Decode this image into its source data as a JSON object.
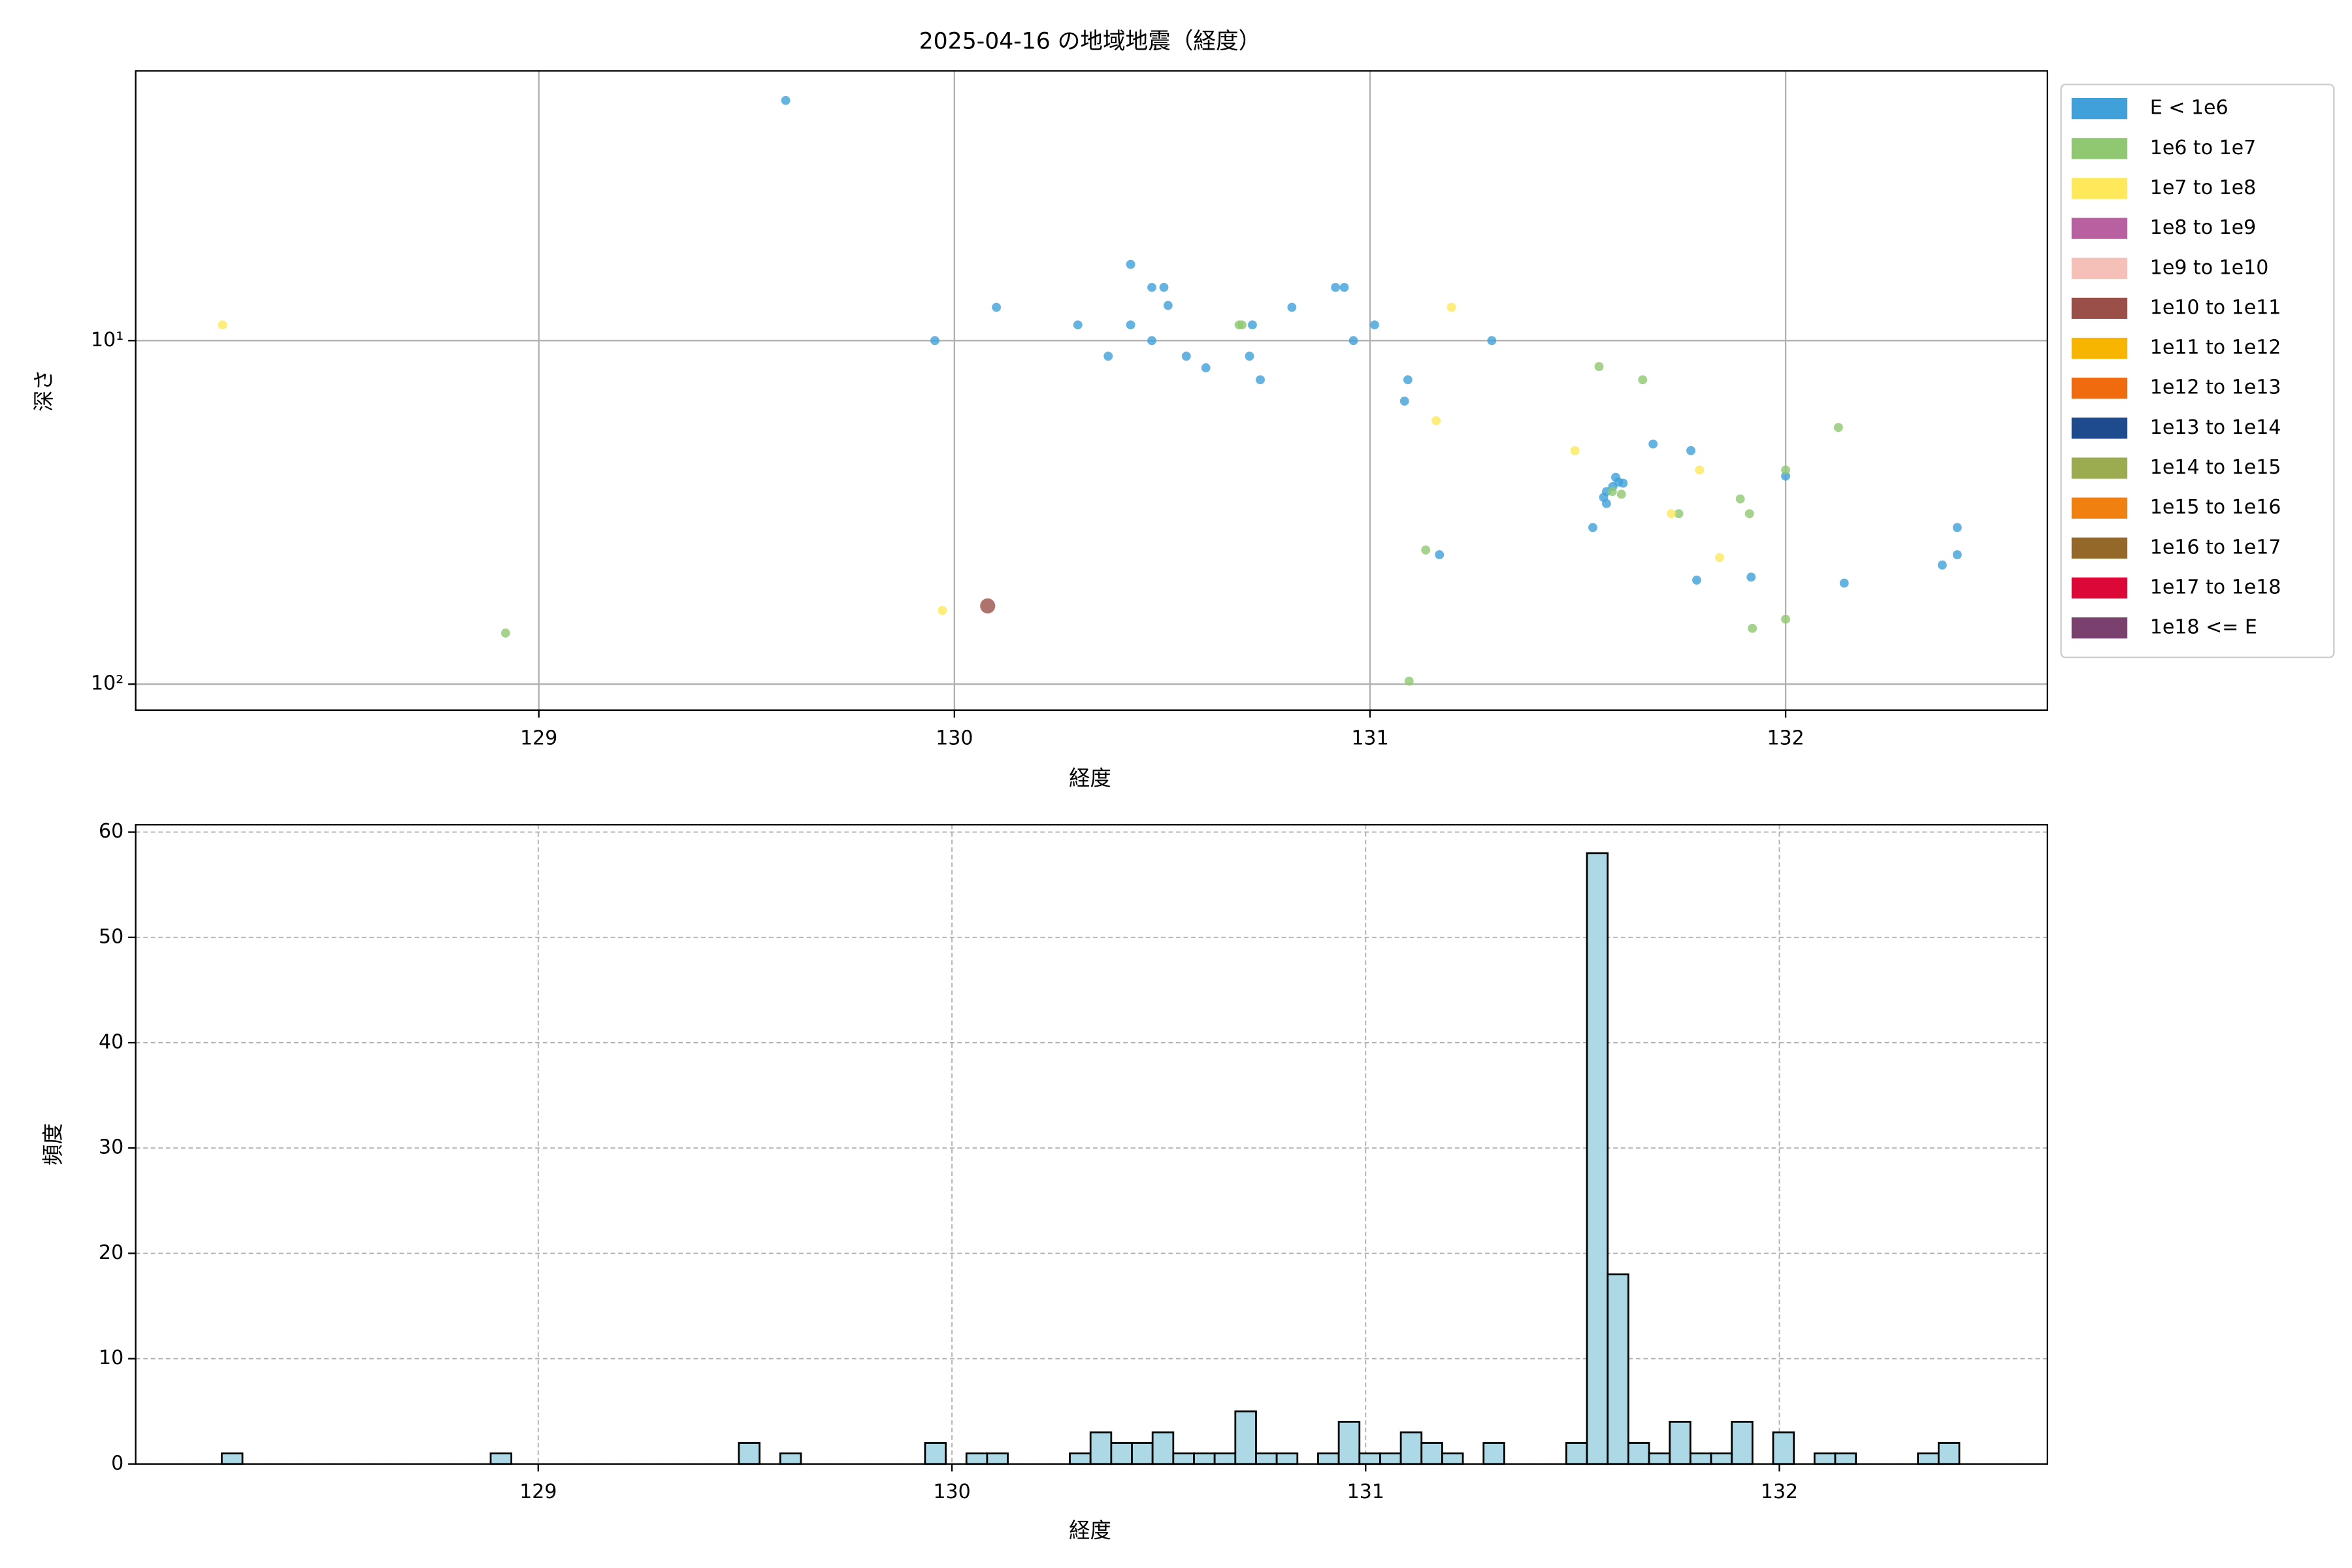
{
  "chart_data": [
    {
      "type": "scatter",
      "title": "2025-04-16 の地域地震（経度）",
      "xlabel": "経度",
      "ylabel": "深さ",
      "xlim": [
        128.03,
        132.63
      ],
      "xticks": [
        129,
        130,
        131,
        132
      ],
      "ylim": [
        119,
        1.64
      ],
      "yscale": "log",
      "yticks": [
        {
          "value": 10,
          "label": "10¹"
        },
        {
          "value": 100,
          "label": "10²"
        }
      ],
      "grid": true,
      "legend": "outside-right",
      "series": [
        {
          "name": "E < 1e6",
          "color": "#3fa0da",
          "size": 3,
          "x": [
            129.594,
            129.953,
            130.101,
            130.297,
            130.424,
            130.475,
            130.504,
            130.514,
            130.424,
            130.475,
            130.37,
            130.558,
            130.605,
            130.71,
            130.736,
            130.717,
            130.812,
            130.917,
            130.938,
            130.96,
            131.011,
            131.091,
            131.083,
            131.293,
            131.167,
            131.536,
            131.681,
            131.772,
            131.591,
            131.609,
            131.562,
            131.569,
            131.584,
            131.598,
            131.569,
            131.786,
            131.917,
            132.0,
            132.141,
            132.377,
            132.413,
            132.413
          ],
          "y": [
            2.0,
            10,
            8.0,
            9.0,
            6.0,
            7.0,
            7.0,
            7.9,
            9.0,
            10,
            11.1,
            11.1,
            12.0,
            11.1,
            13.0,
            9.0,
            8.0,
            7.0,
            7.0,
            10,
            9.0,
            13.0,
            15.0,
            10,
            42,
            35,
            20,
            20.9,
            25,
            26,
            28.6,
            29.8,
            26.6,
            25.8,
            27.5,
            49.8,
            48.8,
            24.8,
            50.8,
            45,
            42,
            35
          ]
        },
        {
          "name": "1e6 to 1e7",
          "color": "#8fc870",
          "size": 3,
          "x": [
            128.92,
            130.685,
            130.692,
            131.551,
            131.656,
            132.127,
            132.0,
            131.891,
            131.913,
            131.743,
            131.583,
            131.605,
            131.134,
            132.0,
            131.92,
            131.094
          ],
          "y": [
            71,
            9.0,
            9.0,
            11.9,
            13.0,
            17.9,
            23.8,
            28.9,
            31.9,
            31.9,
            27.5,
            28,
            40.7,
            64.7,
            68.8,
            98
          ]
        },
        {
          "name": "1e7 to 1e8",
          "color": "#fde95a",
          "size": 3,
          "x": [
            128.239,
            129.971,
            131.196,
            131.159,
            131.493,
            131.793,
            131.725,
            131.841
          ],
          "y": [
            9.0,
            61,
            8.0,
            17.1,
            20.9,
            23.8,
            31.9,
            42.8
          ]
        },
        {
          "name": "1e8 to 1e9",
          "color": "#b860a0",
          "size": 3,
          "x": [],
          "y": []
        },
        {
          "name": "1e9 to 1e10",
          "color": "#f5c0b8",
          "size": 3,
          "x": [],
          "y": []
        },
        {
          "name": "1e10 to 1e11",
          "color": "#9a5048",
          "size": 5,
          "x": [
            130.08
          ],
          "y": [
            59.2
          ]
        },
        {
          "name": "1e11 to 1e12",
          "color": "#f7b500",
          "size": 3,
          "x": [],
          "y": []
        },
        {
          "name": "1e12 to 1e13",
          "color": "#f06a0e",
          "size": 3,
          "x": [],
          "y": []
        },
        {
          "name": "1e13 to 1e14",
          "color": "#1e4a8e",
          "size": 3,
          "x": [],
          "y": []
        },
        {
          "name": "1e14 to 1e15",
          "color": "#9aab50",
          "size": 3,
          "x": [],
          "y": []
        },
        {
          "name": "1e15 to 1e16",
          "color": "#f08010",
          "size": 3,
          "x": [],
          "y": []
        },
        {
          "name": "1e16 to 1e17",
          "color": "#946828",
          "size": 3,
          "x": [],
          "y": []
        },
        {
          "name": "1e17 to 1e18",
          "color": "#dc0838",
          "size": 3,
          "x": [],
          "y": []
        },
        {
          "name": "1e18 <= E",
          "color": "#7a406e",
          "size": 3,
          "x": [],
          "y": []
        }
      ]
    },
    {
      "type": "histogram",
      "xlabel": "経度",
      "ylabel": "頻度",
      "color": "#add8e6",
      "edgecolor": "#000000",
      "xlim": [
        128.027,
        132.648
      ],
      "xticks": [
        129,
        130,
        131,
        132
      ],
      "ylim": [
        0,
        60.7
      ],
      "yticks": [
        0,
        10,
        20,
        30,
        40,
        50,
        60
      ],
      "grid": true,
      "grid_style": "dashed",
      "bins": [
        128.235,
        128.285,
        128.335,
        128.385,
        128.435,
        128.485,
        128.535,
        128.585,
        128.635,
        128.685,
        128.735,
        128.785,
        128.835,
        128.885,
        128.935,
        128.985,
        129.035,
        129.085,
        129.135,
        129.185,
        129.235,
        129.285,
        129.335,
        129.385,
        129.435,
        129.485,
        129.535,
        129.585,
        129.635,
        129.685,
        129.735,
        129.785,
        129.835,
        129.885,
        129.935,
        129.985,
        130.035,
        130.085,
        130.135,
        130.185,
        130.235,
        130.285,
        130.335,
        130.385,
        130.435,
        130.485,
        130.535,
        130.585,
        130.635,
        130.685,
        130.735,
        130.785,
        130.835,
        130.885,
        130.935,
        130.985,
        131.035,
        131.085,
        131.135,
        131.185,
        131.235,
        131.285,
        131.335,
        131.385,
        131.435,
        131.485,
        131.535,
        131.585,
        131.635,
        131.685,
        131.735,
        131.785,
        131.835,
        131.885,
        131.935,
        131.985,
        132.035,
        132.085,
        132.135,
        132.185,
        132.235,
        132.285,
        132.335,
        132.385,
        132.435
      ],
      "values": [
        1,
        0,
        0,
        0,
        0,
        0,
        0,
        0,
        0,
        0,
        0,
        0,
        0,
        1,
        0,
        0,
        0,
        0,
        0,
        0,
        0,
        0,
        0,
        0,
        0,
        2,
        0,
        1,
        0,
        0,
        0,
        0,
        0,
        0,
        2,
        0,
        1,
        1,
        0,
        0,
        0,
        1,
        3,
        2,
        2,
        3,
        1,
        1,
        1,
        5,
        1,
        1,
        0,
        1,
        4,
        1,
        1,
        3,
        2,
        1,
        0,
        2,
        0,
        0,
        0,
        2,
        58,
        18,
        2,
        1,
        4,
        1,
        1,
        4,
        0,
        3,
        0,
        1,
        1,
        0,
        0,
        0,
        1,
        2
      ]
    }
  ]
}
